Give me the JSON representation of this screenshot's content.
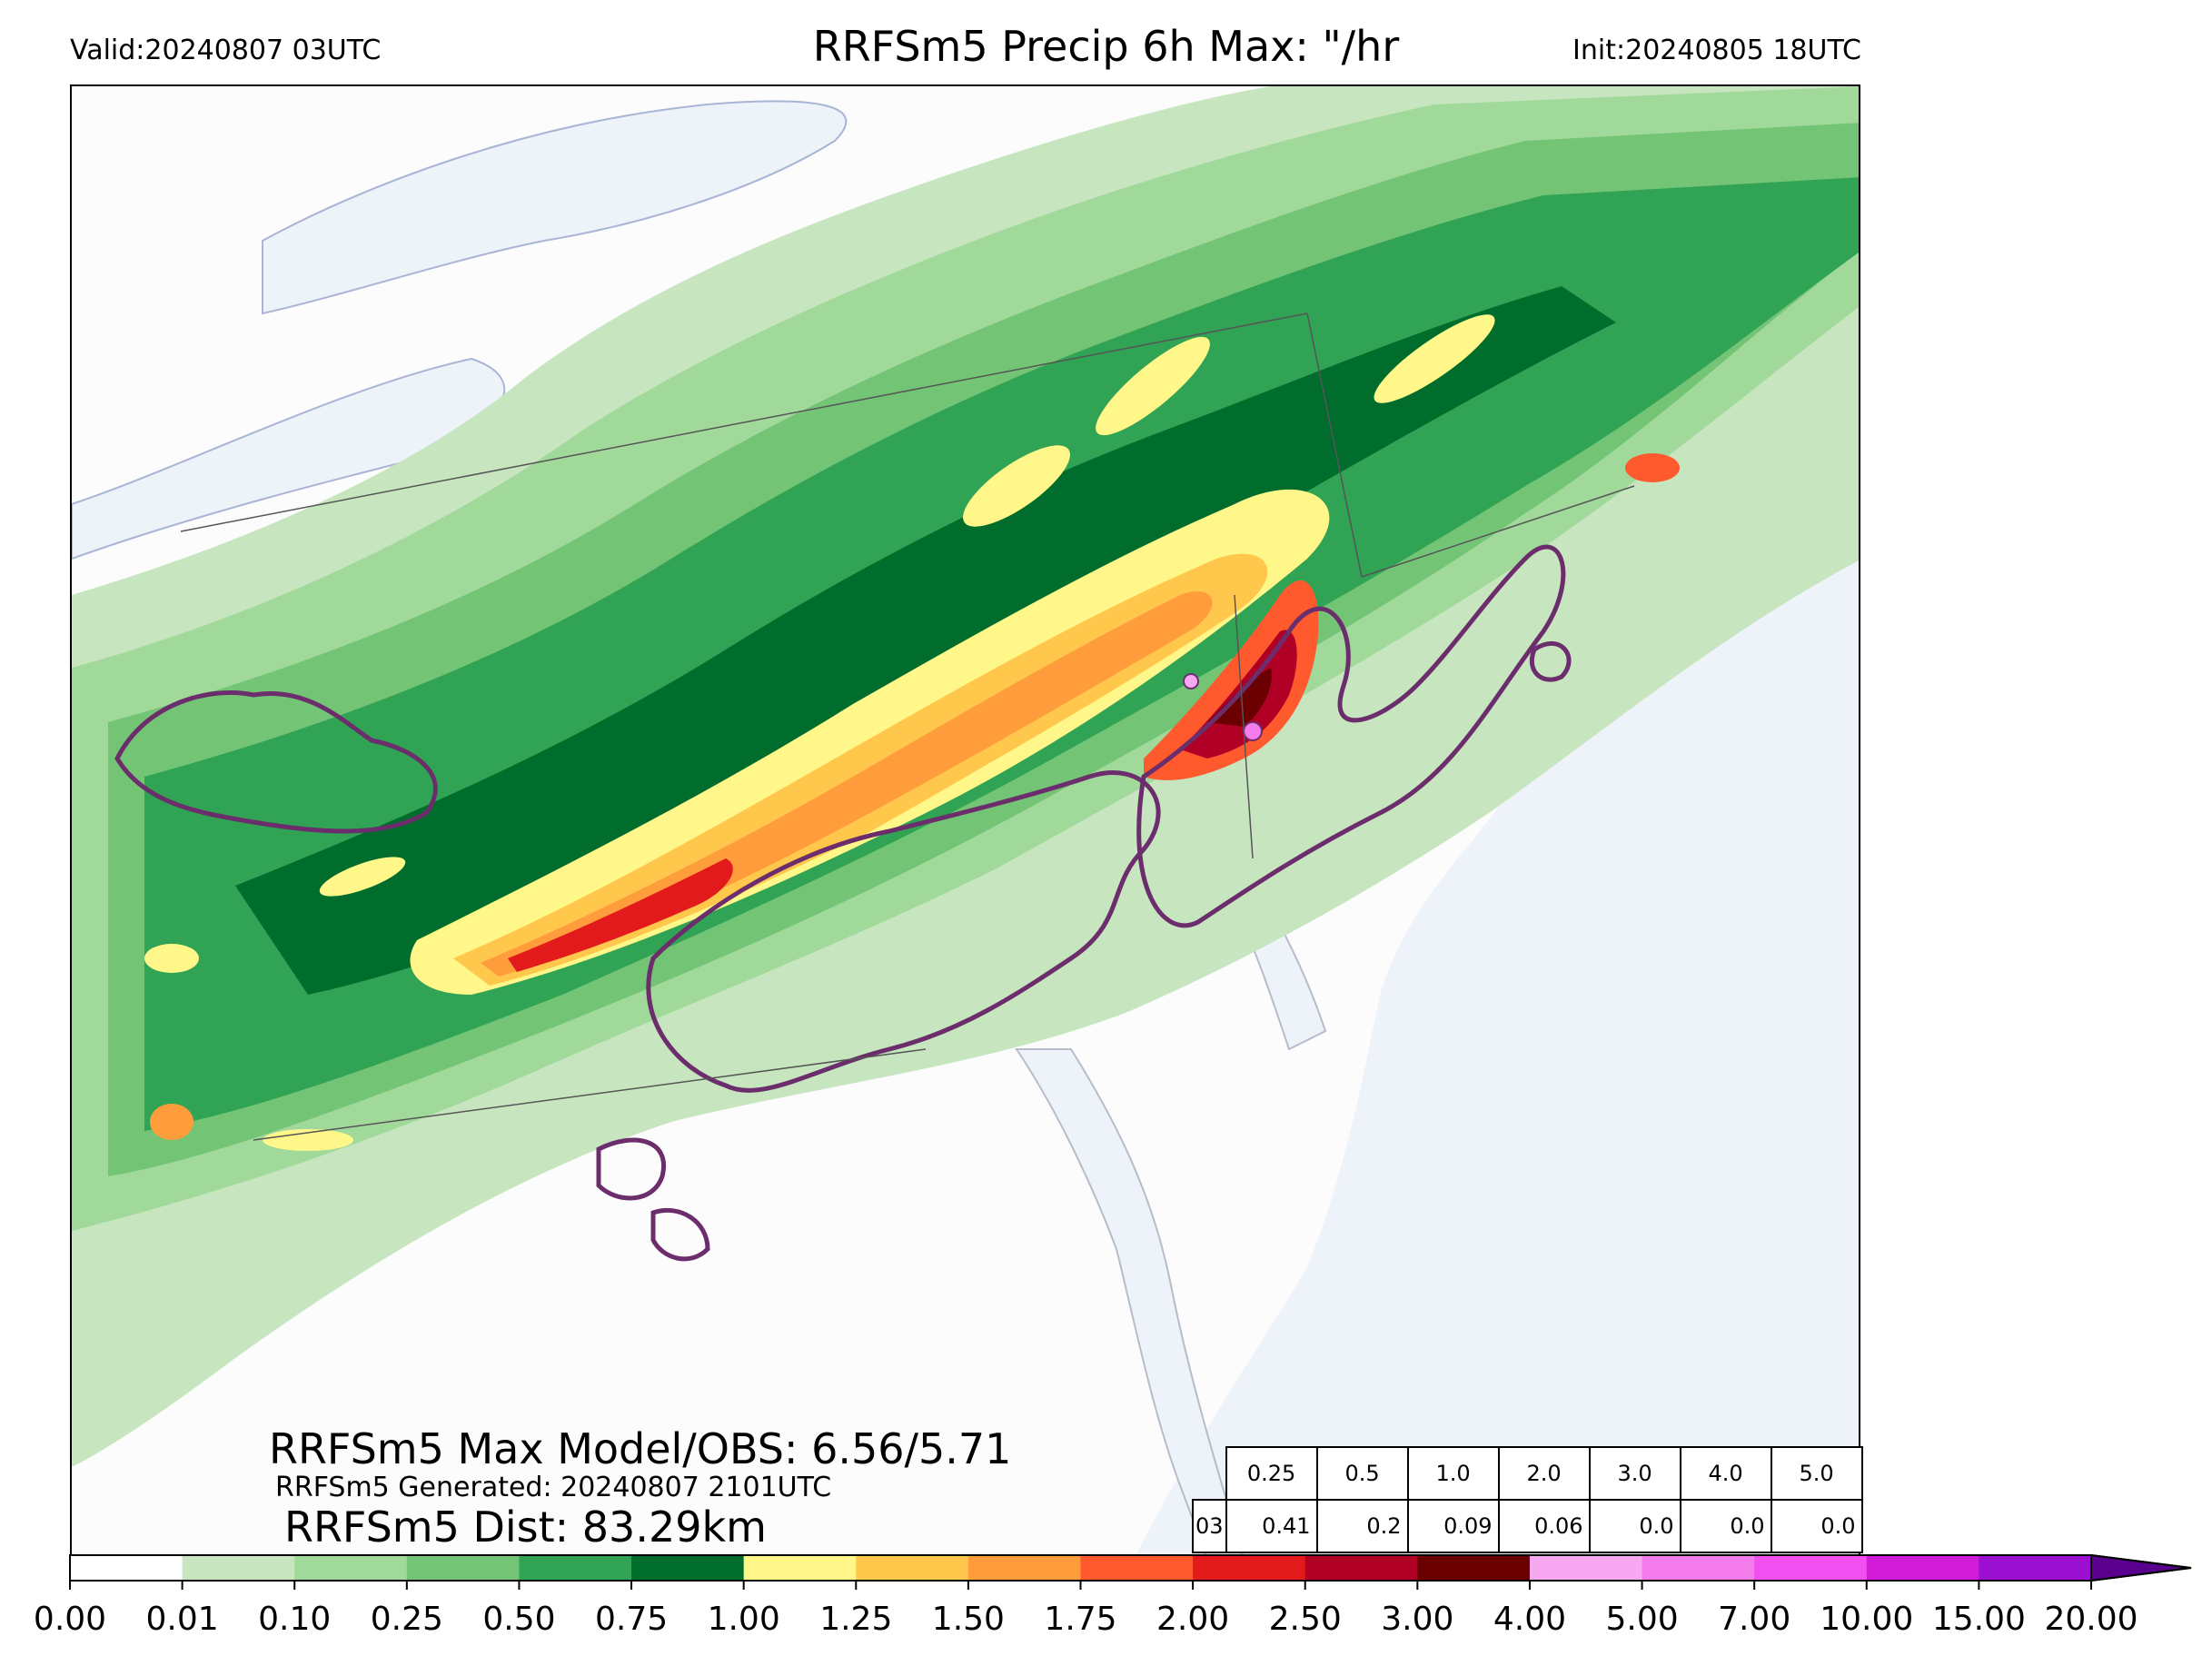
{
  "header": {
    "valid": "Valid:20240807 03UTC",
    "title": "RRFSm5 Precip 6h Max: \"/hr",
    "init": "Init:20240805 18UTC"
  },
  "stats": {
    "max_model_obs": "RRFSm5 Max Model/OBS: 6.56/5.71",
    "generated": "RRFSm5 Generated: 20240807 2101UTC",
    "dist": "RRFSm5 Dist: 83.29km"
  },
  "threshold_table": {
    "row_label": "03",
    "thresholds": [
      "0.25",
      "0.5",
      "1.0",
      "2.0",
      "3.0",
      "4.0",
      "5.0"
    ],
    "values": [
      "0.41",
      "0.2",
      "0.09",
      "0.06",
      "0.0",
      "0.0",
      "0.0"
    ]
  },
  "colorbar": {
    "ticks": [
      "0.00",
      "0.01",
      "0.10",
      "0.25",
      "0.50",
      "0.75",
      "1.00",
      "1.25",
      "1.50",
      "1.75",
      "2.00",
      "2.50",
      "3.00",
      "4.00",
      "5.00",
      "7.00",
      "10.00",
      "15.00",
      "20.00"
    ],
    "colors": [
      "#ffffff",
      "#c7e6c0",
      "#a1d99b",
      "#74c476",
      "#31a354",
      "#006d2c",
      "#fff78a",
      "#ffc84d",
      "#ff9c3c",
      "#ff5a2e",
      "#e31a1c",
      "#b10026",
      "#6b0000",
      "#f7a8f0",
      "#f47cec",
      "#f14ff0",
      "#d21bd8",
      "#9b0fd0"
    ]
  },
  "map": {
    "colors": {
      "water": "#eef3fa",
      "land": "#fcfcfc",
      "light_green": "#c7e6c0",
      "green2": "#a1d99b",
      "green3": "#74c476",
      "green4": "#31a354",
      "green5": "#006d2c",
      "yellow": "#fff78a",
      "orange": "#ffc84d",
      "dark_orange": "#ff9c3c",
      "red_orange": "#ff5a2e",
      "red": "#e31a1c",
      "dark_red": "#b10026",
      "maroon": "#6b0000",
      "pink": "#f47cec",
      "obs_contour": "#6b2d6b"
    }
  }
}
